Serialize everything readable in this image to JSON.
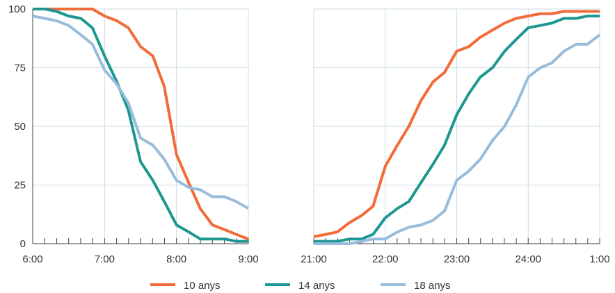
{
  "chart_data": {
    "type": "line",
    "title": "",
    "xlabel": "",
    "ylabel": "",
    "ylim": [
      0,
      100
    ],
    "yticks": [
      0,
      25,
      50,
      75,
      100
    ],
    "grid": true,
    "legend_position": "bottom",
    "panels": [
      {
        "name": "morning",
        "xlim": [
          6,
          9
        ],
        "xticks": [
          {
            "value": 6,
            "label": "6:00"
          },
          {
            "value": 7,
            "label": "7:00"
          },
          {
            "value": 8,
            "label": "8:00"
          },
          {
            "value": 9,
            "label": "9:00"
          }
        ]
      },
      {
        "name": "evening",
        "xlim": [
          21,
          25
        ],
        "xticks": [
          {
            "value": 21,
            "label": "21:00"
          },
          {
            "value": 22,
            "label": "22:00"
          },
          {
            "value": 23,
            "label": "23:00"
          },
          {
            "value": 24,
            "label": "24:00"
          },
          {
            "value": 25,
            "label": "1:00"
          }
        ]
      }
    ],
    "series": [
      {
        "name": "10 anys",
        "color": "#F26B38",
        "morning": [
          [
            6.0,
            100
          ],
          [
            6.17,
            100
          ],
          [
            6.33,
            100
          ],
          [
            6.5,
            100
          ],
          [
            6.67,
            100
          ],
          [
            6.83,
            100
          ],
          [
            7.0,
            97
          ],
          [
            7.17,
            95
          ],
          [
            7.33,
            92
          ],
          [
            7.5,
            84
          ],
          [
            7.67,
            80
          ],
          [
            7.83,
            67
          ],
          [
            8.0,
            38
          ],
          [
            8.17,
            26
          ],
          [
            8.33,
            15
          ],
          [
            8.5,
            8
          ],
          [
            8.67,
            6
          ],
          [
            8.83,
            4
          ],
          [
            9.0,
            2
          ]
        ],
        "evening": [
          [
            21.0,
            3
          ],
          [
            21.17,
            4
          ],
          [
            21.33,
            5
          ],
          [
            21.5,
            9
          ],
          [
            21.67,
            12
          ],
          [
            21.83,
            16
          ],
          [
            22.0,
            33
          ],
          [
            22.17,
            42
          ],
          [
            22.33,
            50
          ],
          [
            22.5,
            61
          ],
          [
            22.67,
            69
          ],
          [
            22.83,
            73
          ],
          [
            23.0,
            82
          ],
          [
            23.17,
            84
          ],
          [
            23.33,
            88
          ],
          [
            23.5,
            91
          ],
          [
            23.67,
            94
          ],
          [
            23.83,
            96
          ],
          [
            24.0,
            97
          ],
          [
            24.17,
            98
          ],
          [
            24.33,
            98
          ],
          [
            24.5,
            99
          ],
          [
            24.67,
            99
          ],
          [
            24.83,
            99
          ],
          [
            25.0,
            99
          ]
        ]
      },
      {
        "name": "14 anys",
        "color": "#1D9791",
        "morning": [
          [
            6.0,
            100
          ],
          [
            6.17,
            100
          ],
          [
            6.33,
            99
          ],
          [
            6.5,
            97
          ],
          [
            6.67,
            96
          ],
          [
            6.83,
            92
          ],
          [
            7.0,
            80
          ],
          [
            7.17,
            69
          ],
          [
            7.33,
            57
          ],
          [
            7.5,
            35
          ],
          [
            7.67,
            27
          ],
          [
            7.83,
            18
          ],
          [
            8.0,
            8
          ],
          [
            8.17,
            5
          ],
          [
            8.33,
            2
          ],
          [
            8.5,
            2
          ],
          [
            8.67,
            2
          ],
          [
            8.83,
            1
          ],
          [
            9.0,
            1
          ]
        ],
        "evening": [
          [
            21.0,
            1
          ],
          [
            21.17,
            1
          ],
          [
            21.33,
            1
          ],
          [
            21.5,
            2
          ],
          [
            21.67,
            2
          ],
          [
            21.83,
            4
          ],
          [
            22.0,
            11
          ],
          [
            22.17,
            15
          ],
          [
            22.33,
            18
          ],
          [
            22.5,
            26
          ],
          [
            22.67,
            34
          ],
          [
            22.83,
            42
          ],
          [
            23.0,
            55
          ],
          [
            23.17,
            64
          ],
          [
            23.33,
            71
          ],
          [
            23.5,
            75
          ],
          [
            23.67,
            82
          ],
          [
            23.83,
            87
          ],
          [
            24.0,
            92
          ],
          [
            24.17,
            93
          ],
          [
            24.33,
            94
          ],
          [
            24.5,
            96
          ],
          [
            24.67,
            96
          ],
          [
            24.83,
            97
          ],
          [
            25.0,
            97
          ]
        ]
      },
      {
        "name": "18 anys",
        "color": "#98BCDB",
        "morning": [
          [
            6.0,
            97
          ],
          [
            6.17,
            96
          ],
          [
            6.33,
            95
          ],
          [
            6.5,
            93
          ],
          [
            6.67,
            89
          ],
          [
            6.83,
            85
          ],
          [
            7.0,
            74
          ],
          [
            7.17,
            68
          ],
          [
            7.33,
            60
          ],
          [
            7.5,
            45
          ],
          [
            7.67,
            42
          ],
          [
            7.83,
            36
          ],
          [
            8.0,
            27
          ],
          [
            8.17,
            24
          ],
          [
            8.33,
            23
          ],
          [
            8.5,
            20
          ],
          [
            8.67,
            20
          ],
          [
            8.83,
            18
          ],
          [
            9.0,
            15
          ]
        ],
        "evening": [
          [
            21.0,
            0
          ],
          [
            21.17,
            0
          ],
          [
            21.33,
            0
          ],
          [
            21.5,
            0
          ],
          [
            21.67,
            1
          ],
          [
            21.83,
            2
          ],
          [
            22.0,
            2
          ],
          [
            22.17,
            5
          ],
          [
            22.33,
            7
          ],
          [
            22.5,
            8
          ],
          [
            22.67,
            10
          ],
          [
            22.83,
            14
          ],
          [
            23.0,
            27
          ],
          [
            23.17,
            31
          ],
          [
            23.33,
            36
          ],
          [
            23.5,
            44
          ],
          [
            23.67,
            50
          ],
          [
            23.83,
            59
          ],
          [
            24.0,
            71
          ],
          [
            24.17,
            75
          ],
          [
            24.33,
            77
          ],
          [
            24.5,
            82
          ],
          [
            24.67,
            85
          ],
          [
            24.83,
            85
          ],
          [
            25.0,
            89
          ]
        ]
      }
    ]
  }
}
